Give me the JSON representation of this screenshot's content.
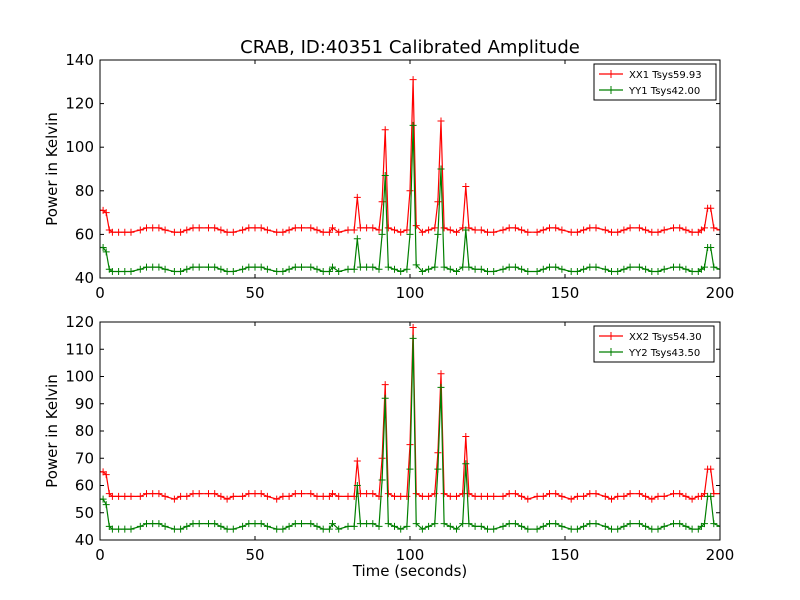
{
  "figure_title": "CRAB, ID:40351 Calibrated Amplitude",
  "colors": {
    "xx": "#ff0000",
    "yy": "#007f00"
  },
  "chart_data": [
    {
      "type": "line",
      "xlabel": "",
      "ylabel": "Power in Kelvin",
      "xlim": [
        0,
        200
      ],
      "ylim": [
        40,
        140
      ],
      "xticks": [
        0,
        50,
        100,
        150,
        200
      ],
      "yticks": [
        40,
        60,
        80,
        100,
        120,
        140
      ],
      "legend_position": "top-right",
      "series": [
        {
          "name": "XX1 Tsys59.93",
          "color": "#ff0000",
          "marker": "+",
          "x": [
            0,
            1,
            2,
            3,
            4,
            6,
            8,
            10,
            13,
            15,
            17,
            19,
            21,
            24,
            26,
            28,
            30,
            32,
            35,
            37,
            39,
            41,
            43,
            46,
            48,
            50,
            52,
            54,
            57,
            59,
            61,
            63,
            65,
            68,
            70,
            72,
            74,
            75,
            77,
            80,
            82,
            83,
            84,
            86,
            88,
            90,
            91,
            92,
            93,
            95,
            97,
            99,
            100,
            101,
            102,
            104,
            106,
            108,
            109,
            110,
            111,
            113,
            115,
            117,
            118,
            119,
            121,
            123,
            125,
            127,
            130,
            132,
            134,
            136,
            138,
            141,
            143,
            145,
            147,
            149,
            152,
            154,
            156,
            158,
            160,
            163,
            165,
            167,
            169,
            171,
            174,
            176,
            178,
            180,
            182,
            185,
            187,
            189,
            191,
            193,
            194,
            195,
            196,
            197,
            198,
            200
          ],
          "y": [
            71,
            71,
            70,
            62,
            61,
            61,
            61,
            61,
            62,
            63,
            63,
            63,
            62,
            61,
            61,
            62,
            63,
            63,
            63,
            63,
            62,
            61,
            61,
            62,
            63,
            63,
            63,
            62,
            61,
            61,
            62,
            63,
            63,
            63,
            62,
            61,
            61,
            63,
            61,
            62,
            62,
            77,
            63,
            63,
            63,
            62,
            75,
            108,
            63,
            62,
            61,
            62,
            80,
            131,
            64,
            61,
            62,
            63,
            75,
            112,
            63,
            62,
            61,
            63,
            82,
            63,
            62,
            62,
            61,
            61,
            62,
            63,
            63,
            62,
            61,
            61,
            62,
            63,
            63,
            62,
            61,
            61,
            62,
            63,
            63,
            62,
            61,
            61,
            62,
            63,
            63,
            62,
            61,
            61,
            62,
            63,
            63,
            62,
            61,
            61,
            62,
            63,
            72,
            72,
            63,
            62
          ]
        },
        {
          "name": "YY1 Tsys42.00",
          "color": "#007f00",
          "marker": "+",
          "x": [
            0,
            1,
            2,
            3,
            4,
            6,
            8,
            10,
            13,
            15,
            17,
            19,
            21,
            24,
            26,
            28,
            30,
            32,
            35,
            37,
            39,
            41,
            43,
            46,
            48,
            50,
            52,
            54,
            57,
            59,
            61,
            63,
            65,
            68,
            70,
            72,
            74,
            75,
            77,
            80,
            82,
            83,
            84,
            86,
            88,
            90,
            91,
            92,
            93,
            95,
            97,
            99,
            100,
            101,
            102,
            104,
            106,
            108,
            109,
            110,
            111,
            113,
            115,
            117,
            118,
            119,
            121,
            123,
            125,
            127,
            130,
            132,
            134,
            136,
            138,
            141,
            143,
            145,
            147,
            149,
            152,
            154,
            156,
            158,
            160,
            163,
            165,
            167,
            169,
            171,
            174,
            176,
            178,
            180,
            182,
            185,
            187,
            189,
            191,
            193,
            194,
            195,
            196,
            197,
            198,
            200
          ],
          "y": [
            54,
            54,
            52,
            44,
            43,
            43,
            43,
            43,
            44,
            45,
            45,
            45,
            44,
            43,
            43,
            44,
            45,
            45,
            45,
            45,
            44,
            43,
            43,
            44,
            45,
            45,
            45,
            44,
            43,
            43,
            44,
            45,
            45,
            45,
            44,
            43,
            43,
            45,
            43,
            44,
            44,
            58,
            45,
            45,
            45,
            44,
            60,
            87,
            45,
            44,
            43,
            44,
            60,
            110,
            46,
            43,
            44,
            45,
            60,
            90,
            45,
            44,
            43,
            45,
            62,
            45,
            44,
            44,
            43,
            43,
            44,
            45,
            45,
            44,
            43,
            43,
            44,
            45,
            45,
            44,
            43,
            43,
            44,
            45,
            45,
            44,
            43,
            43,
            44,
            45,
            45,
            44,
            43,
            43,
            44,
            45,
            45,
            44,
            43,
            43,
            44,
            45,
            54,
            54,
            45,
            44
          ]
        }
      ]
    },
    {
      "type": "line",
      "xlabel": "Time (seconds)",
      "ylabel": "Power in Kelvin",
      "xlim": [
        0,
        200
      ],
      "ylim": [
        40,
        120
      ],
      "xticks": [
        0,
        50,
        100,
        150,
        200
      ],
      "yticks": [
        40,
        50,
        60,
        70,
        80,
        90,
        100,
        110,
        120
      ],
      "legend_position": "top-right",
      "series": [
        {
          "name": "XX2 Tsys54.30",
          "color": "#ff0000",
          "marker": "+",
          "x": [
            0,
            1,
            2,
            3,
            4,
            6,
            8,
            10,
            13,
            15,
            17,
            19,
            21,
            24,
            26,
            28,
            30,
            32,
            35,
            37,
            39,
            41,
            43,
            46,
            48,
            50,
            52,
            54,
            57,
            59,
            61,
            63,
            65,
            68,
            70,
            72,
            74,
            75,
            77,
            80,
            82,
            83,
            84,
            86,
            88,
            90,
            91,
            92,
            93,
            95,
            97,
            99,
            100,
            101,
            102,
            104,
            106,
            108,
            109,
            110,
            111,
            113,
            115,
            117,
            118,
            119,
            121,
            123,
            125,
            127,
            130,
            132,
            134,
            136,
            138,
            141,
            143,
            145,
            147,
            149,
            152,
            154,
            156,
            158,
            160,
            163,
            165,
            167,
            169,
            171,
            174,
            176,
            178,
            180,
            182,
            185,
            187,
            189,
            191,
            193,
            194,
            195,
            196,
            197,
            198,
            200
          ],
          "y": [
            65,
            65,
            64,
            57,
            56,
            56,
            56,
            56,
            56,
            57,
            57,
            57,
            56,
            55,
            56,
            56,
            57,
            57,
            57,
            57,
            56,
            55,
            56,
            56,
            57,
            57,
            57,
            56,
            55,
            56,
            56,
            57,
            57,
            57,
            56,
            56,
            56,
            57,
            56,
            56,
            56,
            69,
            57,
            57,
            57,
            56,
            70,
            97,
            57,
            56,
            56,
            56,
            75,
            118,
            57,
            56,
            56,
            57,
            72,
            101,
            57,
            56,
            56,
            57,
            78,
            57,
            56,
            56,
            56,
            56,
            56,
            57,
            57,
            56,
            55,
            56,
            56,
            57,
            57,
            56,
            55,
            56,
            56,
            57,
            57,
            56,
            55,
            56,
            56,
            57,
            57,
            56,
            55,
            56,
            56,
            57,
            57,
            56,
            55,
            56,
            56,
            57,
            66,
            66,
            57,
            57
          ]
        },
        {
          "name": "YY2 Tsys43.50",
          "color": "#007f00",
          "marker": "+",
          "x": [
            0,
            1,
            2,
            3,
            4,
            6,
            8,
            10,
            13,
            15,
            17,
            19,
            21,
            24,
            26,
            28,
            30,
            32,
            35,
            37,
            39,
            41,
            43,
            46,
            48,
            50,
            52,
            54,
            57,
            59,
            61,
            63,
            65,
            68,
            70,
            72,
            74,
            75,
            77,
            80,
            82,
            83,
            84,
            86,
            88,
            90,
            91,
            92,
            93,
            95,
            97,
            99,
            100,
            101,
            102,
            104,
            106,
            108,
            109,
            110,
            111,
            113,
            115,
            117,
            118,
            119,
            121,
            123,
            125,
            127,
            130,
            132,
            134,
            136,
            138,
            141,
            143,
            145,
            147,
            149,
            152,
            154,
            156,
            158,
            160,
            163,
            165,
            167,
            169,
            171,
            174,
            176,
            178,
            180,
            182,
            185,
            187,
            189,
            191,
            193,
            194,
            195,
            196,
            197,
            198,
            200
          ],
          "y": [
            55,
            55,
            53,
            45,
            44,
            44,
            44,
            44,
            45,
            46,
            46,
            46,
            45,
            44,
            44,
            45,
            46,
            46,
            46,
            46,
            45,
            44,
            44,
            45,
            46,
            46,
            46,
            45,
            44,
            44,
            45,
            46,
            46,
            46,
            45,
            44,
            44,
            46,
            44,
            45,
            45,
            60,
            46,
            46,
            46,
            45,
            62,
            92,
            46,
            45,
            44,
            45,
            66,
            114,
            46,
            44,
            45,
            46,
            66,
            96,
            46,
            45,
            44,
            46,
            68,
            46,
            45,
            45,
            44,
            44,
            45,
            46,
            46,
            45,
            44,
            44,
            45,
            46,
            46,
            45,
            44,
            44,
            45,
            46,
            46,
            45,
            44,
            44,
            45,
            46,
            46,
            45,
            44,
            44,
            45,
            46,
            46,
            45,
            44,
            44,
            45,
            46,
            56,
            56,
            46,
            45
          ]
        }
      ]
    }
  ]
}
